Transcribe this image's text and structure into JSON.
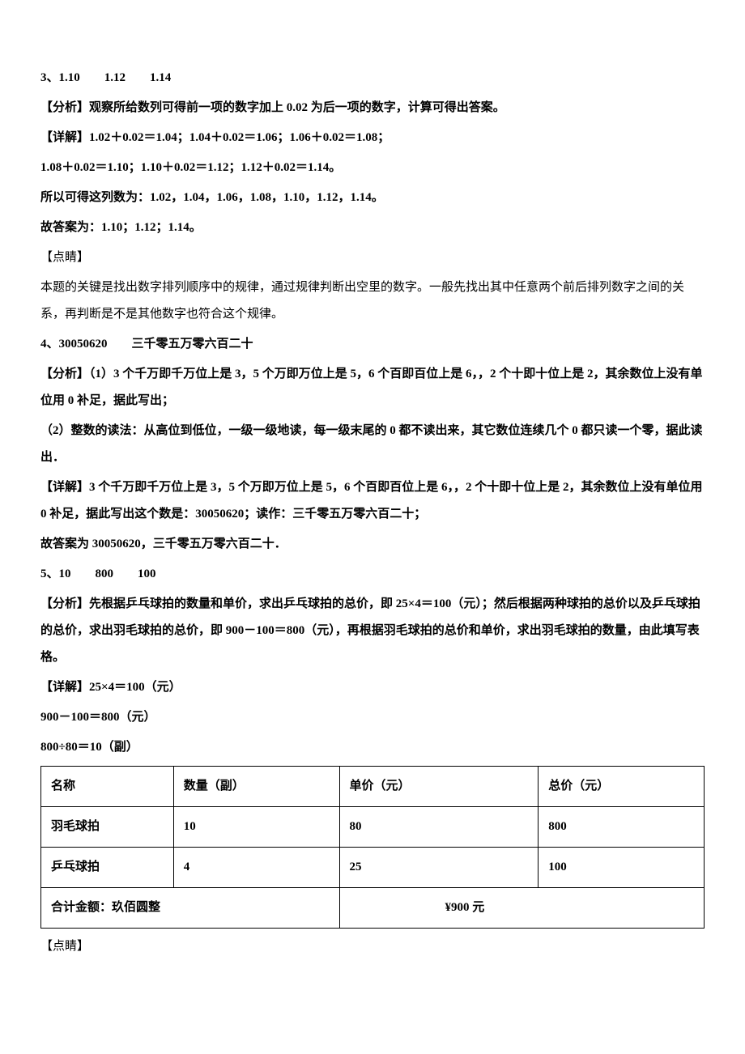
{
  "q3": {
    "header": "3、1.10",
    "header2": "1.12",
    "header3": "1.14",
    "analysis_label": "【分析】",
    "analysis": "观察所给数列可得前一项的数字加上 0.02 为后一项的数字，计算可得出答案。",
    "detail_label": "【详解】",
    "detail1": "1.02＋0.02＝1.04；1.04＋0.02＝1.06；1.06＋0.02＝1.08；",
    "detail2": "1.08＋0.02＝1.10；1.10＋0.02＝1.12；1.12＋0.02＝1.14。",
    "detail3": "所以可得这列数为：1.02，1.04，1.06，1.08，1.10，1.12，1.14。",
    "detail4": "故答案为：1.10；1.12；1.14。",
    "point_label": "【点睛】",
    "point": "本题的关键是找出数字排列顺序中的规律，通过规律判断出空里的数字。一般先找出其中任意两个前后排列数字之间的关系，再判断是不是其他数字也符合这个规律。"
  },
  "q4": {
    "header": "4、30050620",
    "header2": "三千零五万零六百二十",
    "analysis_label": "【分析】",
    "analysis": "（1）3 个千万即千万位上是 3，5 个万即万位上是 5，6 个百即百位上是 6，，2 个十即十位上是 2，其余数位上没有单位用 0 补足，据此写出；",
    "analysis2": "（2）整数的读法：从高位到低位，一级一级地读，每一级末尾的 0 都不读出来，其它数位连续几个 0 都只读一个零，据此读出．",
    "detail_label": "【详解】",
    "detail": "3 个千万即千万位上是 3，5 个万即万位上是 5，6 个百即百位上是 6，，2 个十即十位上是 2，其余数位上没有单位用 0 补足，据此写出这个数是：30050620；读作：三千零五万零六百二十；",
    "detail2": "故答案为 30050620，三千零五万零六百二十．"
  },
  "q5": {
    "header": "5、10",
    "header2": "800",
    "header3": "100",
    "analysis_label": "【分析】",
    "analysis": "先根据乒乓球拍的数量和单价，求出乒乓球拍的总价，即 25×4＝100（元）；然后根据两种球拍的总价以及乒乓球拍的总价，求出羽毛球拍的总价，即 900－100＝800（元），再根据羽毛球拍的总价和单价，求出羽毛球拍的数量，由此填写表格。",
    "detail_label": "【详解】",
    "calc1": "25×4＝100（元）",
    "calc2": "900－100＝800（元）",
    "calc3": "800÷80＝10（副）",
    "point_label": "【点睛】"
  },
  "table": {
    "columns": [
      "名称",
      "数量（副）",
      "单价（元）",
      "总价（元）"
    ],
    "rows": [
      [
        "羽毛球拍",
        "10",
        "80",
        "800"
      ],
      [
        "乒乓球拍",
        "4",
        "25",
        "100"
      ]
    ],
    "footer_left": "合计金额：玖佰圆整",
    "footer_right": "¥900 元",
    "col_widths": [
      "20%",
      "25%",
      "30%",
      "25%"
    ],
    "border_color": "#000000",
    "font_size": 15,
    "font_weight": "bold"
  },
  "colors": {
    "text": "#000000",
    "background": "#ffffff",
    "border": "#000000"
  },
  "typography": {
    "font_family": "SimSun",
    "font_size": 15,
    "line_height": 2.2,
    "bold_weight": "bold"
  }
}
